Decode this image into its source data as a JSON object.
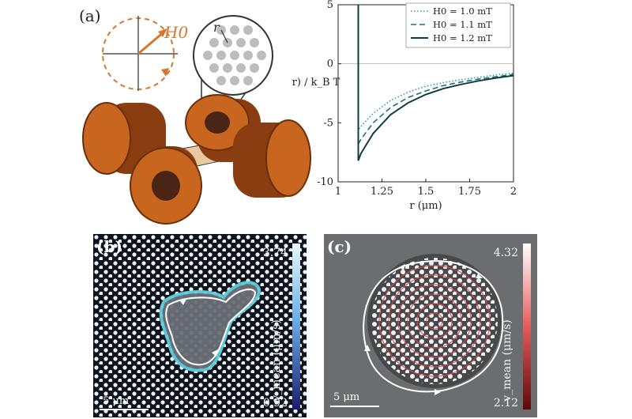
{
  "panels": {
    "a": {
      "label": "(a)",
      "field_label": "H0",
      "lattice_label": "r"
    },
    "b": {
      "label": "(b)",
      "colorbar": {
        "max": "3.74",
        "min": "0.92",
        "label": "v_mean (μm/s)"
      },
      "scalebar": "5 μm"
    },
    "c": {
      "label": "(c)",
      "colorbar": {
        "max": "4.32",
        "min": "2.12",
        "label": "v_mean (μm/s)"
      },
      "scalebar": "5 μm"
    }
  },
  "chart_data": {
    "type": "line",
    "xlabel": "r (μm)",
    "ylabel": "U(r) / k_B T",
    "xlim": [
      1,
      2
    ],
    "ylim": [
      -10,
      5
    ],
    "xticks": [
      "1",
      "1.25",
      "1.5",
      "1.75",
      "2"
    ],
    "yticks": [
      "5",
      "0",
      "-5",
      "-10"
    ],
    "legend_position": "top-right",
    "series": [
      {
        "name": "H0 = 1.0 mT",
        "style": "dotted",
        "color": "#2a9da6",
        "x": [
          1.115,
          1.13,
          1.2,
          1.3,
          1.4,
          1.5,
          1.6,
          1.7,
          1.8,
          1.9,
          2.0
        ],
        "y": [
          -5.6,
          -5.3,
          -4.2,
          -3.1,
          -2.4,
          -1.9,
          -1.6,
          -1.35,
          -1.15,
          -0.95,
          -0.8
        ]
      },
      {
        "name": "H0 = 1.1 mT",
        "style": "dashed",
        "color": "#1f6f80",
        "x": [
          1.115,
          1.13,
          1.2,
          1.3,
          1.4,
          1.5,
          1.6,
          1.7,
          1.8,
          1.9,
          2.0
        ],
        "y": [
          -6.8,
          -6.4,
          -5.0,
          -3.7,
          -2.85,
          -2.3,
          -1.85,
          -1.55,
          -1.3,
          -1.1,
          -0.9
        ]
      },
      {
        "name": "H0 = 1.2 mT",
        "style": "solid",
        "color": "#0f3d3e",
        "x": [
          1.115,
          1.13,
          1.2,
          1.3,
          1.4,
          1.5,
          1.6,
          1.7,
          1.8,
          1.9,
          2.0
        ],
        "y": [
          -8.2,
          -7.6,
          -5.9,
          -4.3,
          -3.3,
          -2.6,
          -2.1,
          -1.75,
          -1.45,
          -1.2,
          -1.0
        ]
      }
    ]
  }
}
